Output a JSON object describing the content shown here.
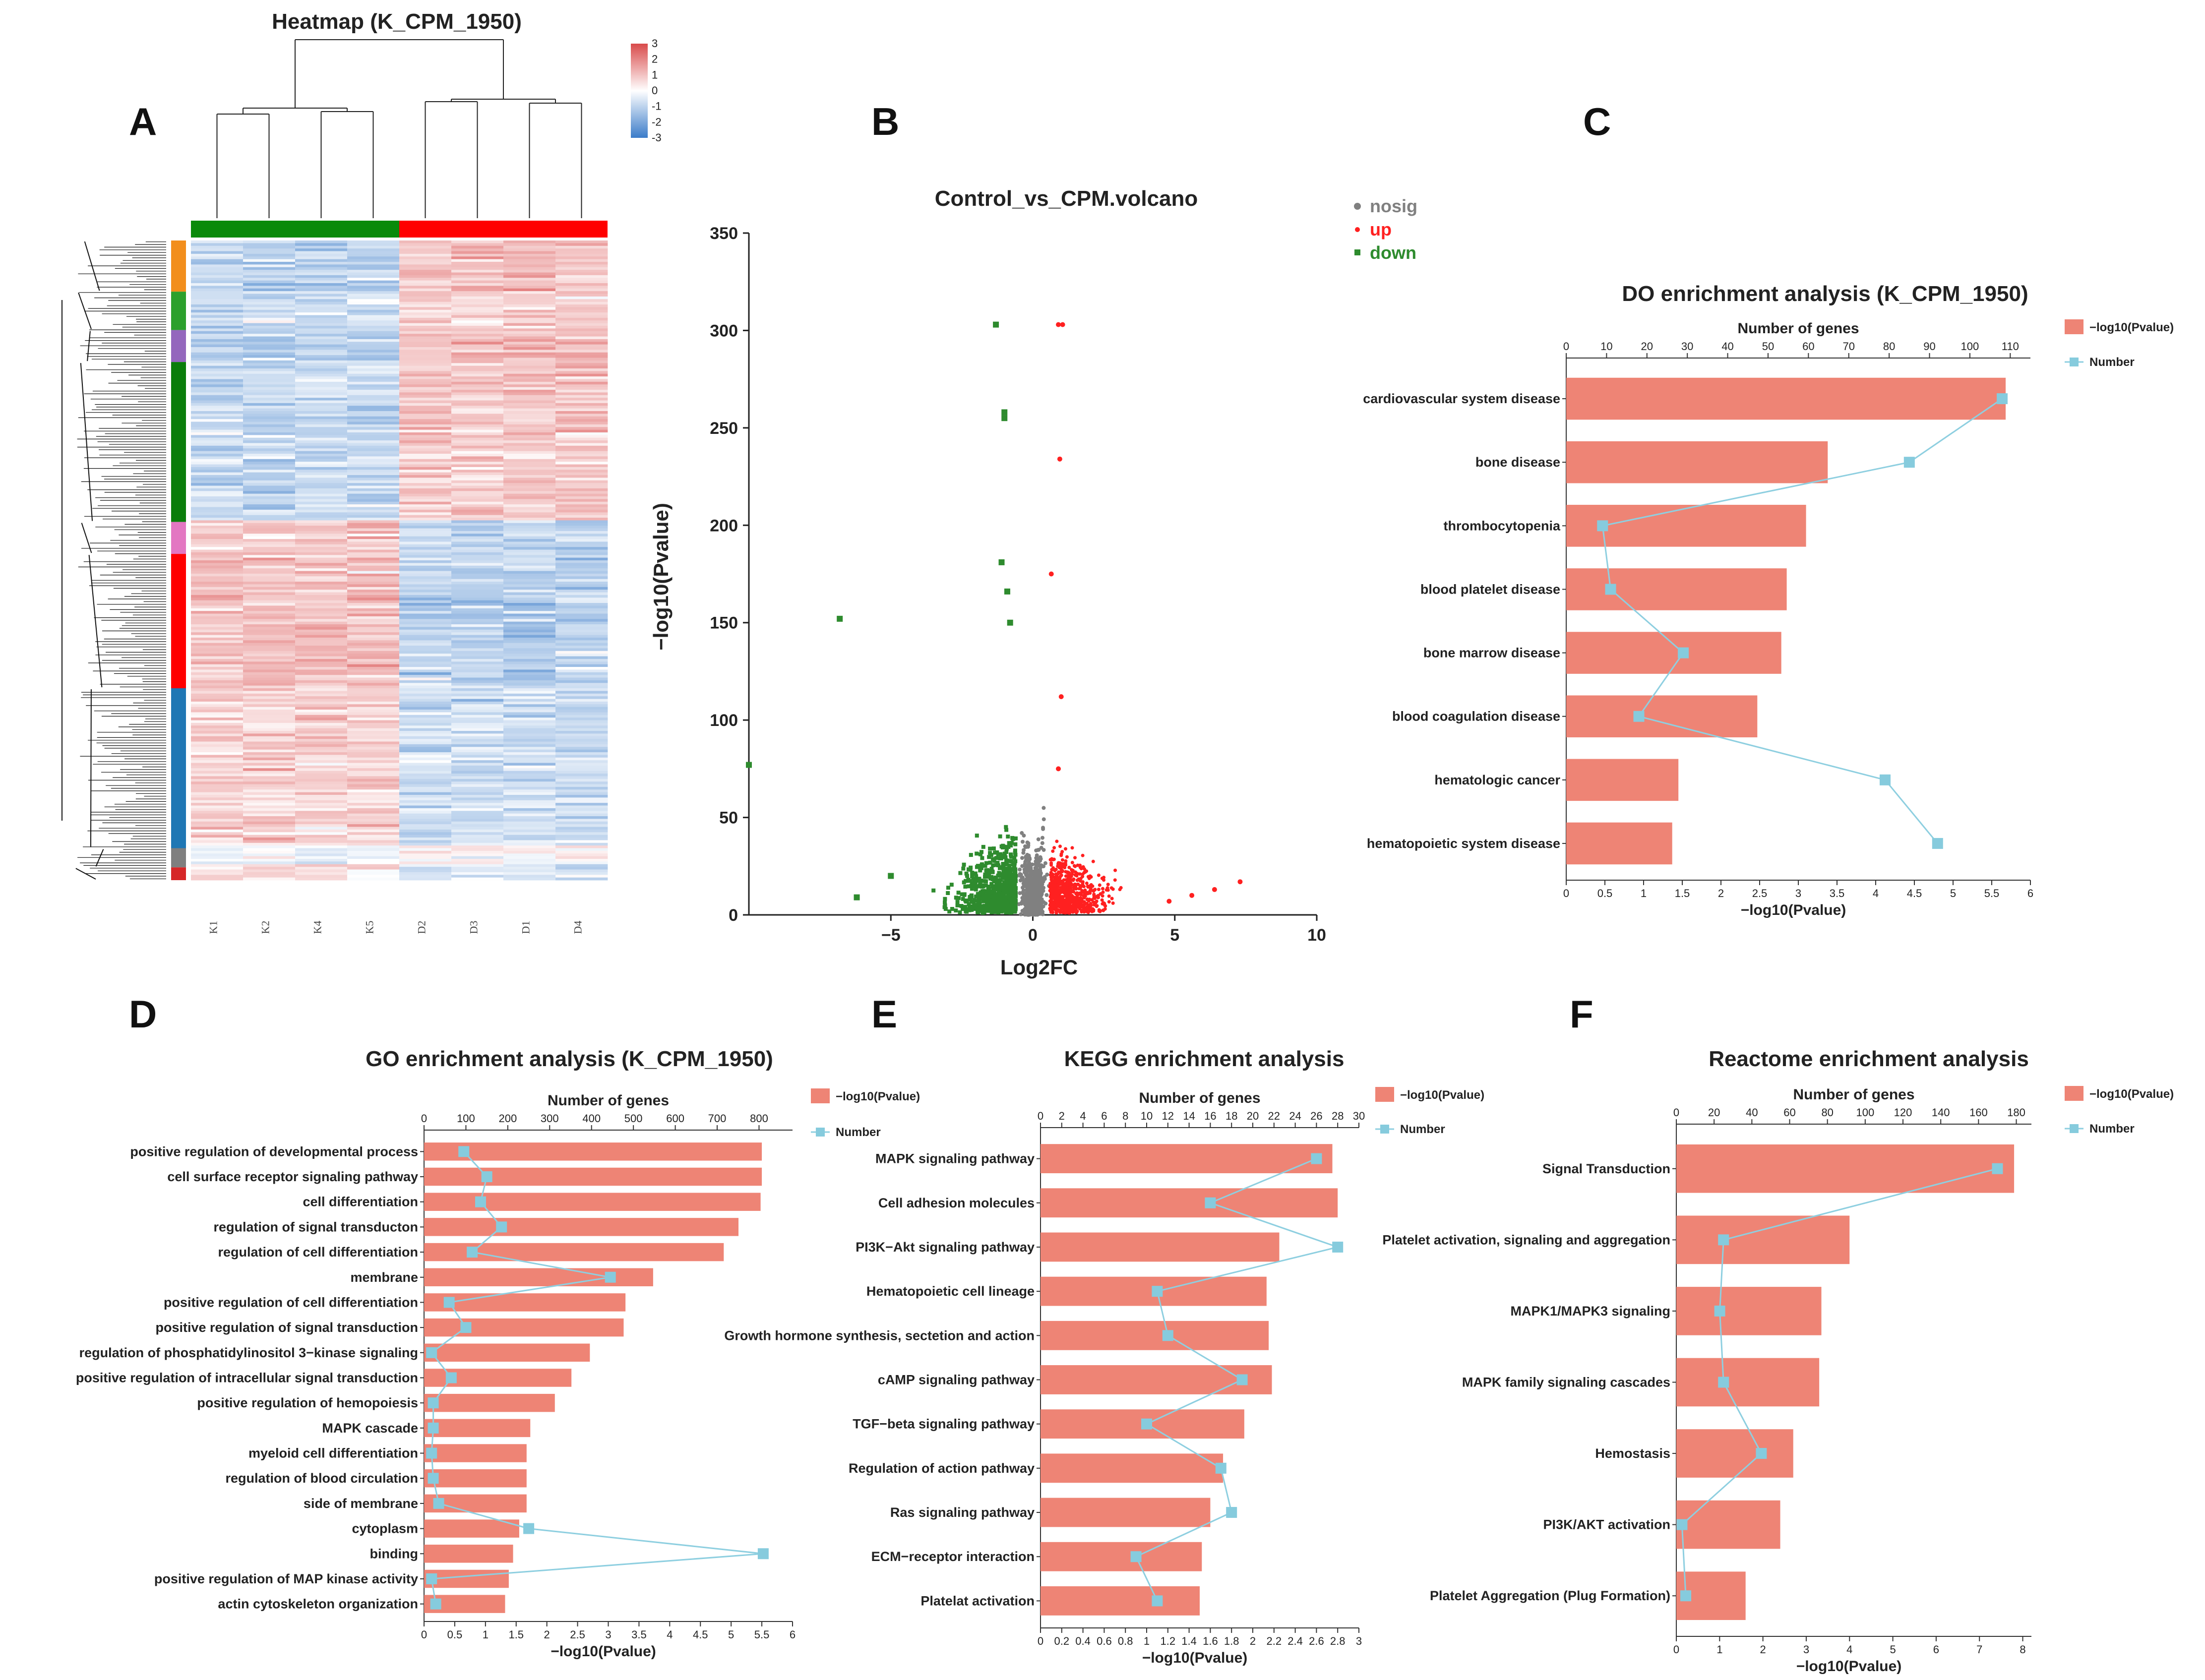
{
  "figure": {
    "panel_letters": [
      "A",
      "B",
      "C",
      "D",
      "E",
      "F"
    ],
    "colors": {
      "bar": "#ee8475",
      "line": "#8ecfe0",
      "marker": "#86cbdd",
      "nosig": "#808080",
      "up": "#ff2020",
      "down": "#2e8b2e",
      "heat_high": "#d94a4a",
      "heat_mid": "#ffffff",
      "heat_low": "#3b7cc9",
      "group_control": "#0a8a0a",
      "group_treat": "#ff0000"
    }
  },
  "chart_data": [
    {
      "id": "A",
      "type": "heatmap",
      "title": "Heatmap (K_CPM_1950)",
      "samples": [
        "K1",
        "K2",
        "K4",
        "K5",
        "D2",
        "D3",
        "D1",
        "D4"
      ],
      "colorbar_ticks": [
        "3",
        "2",
        "1",
        "0",
        "-1",
        "-2",
        "-3"
      ],
      "colorbar_range": [
        -3,
        3
      ],
      "row_cluster_colors": [
        "#f28e1c",
        "#2ca02c",
        "#9467bd",
        "#0a7d0a",
        "#e377c2",
        "#ff0000",
        "#1f77b4",
        "#7f7f7f",
        "#d62728"
      ],
      "row_cluster_fractions": [
        0.08,
        0.06,
        0.05,
        0.25,
        0.05,
        0.21,
        0.25,
        0.03,
        0.02
      ]
    },
    {
      "id": "B",
      "type": "scatter",
      "title": "Control_vs_CPM.volcano",
      "xlabel": "Log2FC",
      "ylabel": "−log10(Pvalue)",
      "xlim": [
        -10,
        10
      ],
      "ylim": [
        0,
        350
      ],
      "xticks": [
        -5,
        0,
        5,
        10
      ],
      "yticks": [
        0,
        50,
        100,
        150,
        200,
        250,
        300,
        350
      ],
      "legend": [
        "nosig",
        "up",
        "down"
      ],
      "highlighted_points": {
        "up": [
          [
            0.9,
            303
          ],
          [
            1.05,
            303
          ],
          [
            0.95,
            234
          ],
          [
            0.65,
            175
          ],
          [
            7.3,
            17
          ],
          [
            6.4,
            13
          ],
          [
            5.6,
            10
          ],
          [
            4.8,
            7
          ],
          [
            1.0,
            112
          ],
          [
            0.9,
            75
          ]
        ],
        "down": [
          [
            -1.3,
            303
          ],
          [
            -1.0,
            258
          ],
          [
            -1.0,
            255
          ],
          [
            -6.8,
            152
          ],
          [
            -10,
            77
          ],
          [
            -1.1,
            181
          ],
          [
            -0.9,
            166
          ],
          [
            -0.8,
            150
          ],
          [
            -5.0,
            20
          ],
          [
            -6.2,
            9
          ]
        ]
      }
    },
    {
      "id": "C",
      "type": "bar",
      "title": "DO enrichment analysis (K_CPM_1950)",
      "xlabel": "−log10(Pvalue)",
      "x2label": "Number of genes",
      "legend": [
        "−log10(Pvalue)",
        "Number"
      ],
      "categories": [
        "cardiovascular system disease",
        "bone disease",
        "thrombocytopenia",
        "blood platelet disease",
        "bone marrow disease",
        "blood coagulation disease",
        "hematologic cancer",
        "hematopoietic system disease"
      ],
      "values": [
        5.68,
        3.38,
        3.1,
        2.85,
        2.78,
        2.47,
        1.45,
        1.37
      ],
      "numbers": [
        108,
        85,
        9,
        11,
        29,
        18,
        79,
        92
      ],
      "xlim": [
        0,
        6
      ],
      "xticks": [
        "0",
        "0.5",
        "1",
        "1.5",
        "2",
        "2.5",
        "3",
        "3.5",
        "4",
        "4.5",
        "5",
        "5.5",
        "6"
      ],
      "x2lim": [
        0,
        115
      ],
      "x2ticks": [
        "0",
        "10",
        "20",
        "30",
        "40",
        "50",
        "60",
        "70",
        "80",
        "90",
        "100",
        "110"
      ]
    },
    {
      "id": "D",
      "type": "bar",
      "title": "GO enrichment analysis (K_CPM_1950)",
      "xlabel": "−log10(Pvalue)",
      "x2label": "Number of genes",
      "legend": [
        "−log10(Pvalue)",
        "Number"
      ],
      "categories": [
        "positive regulation of developmental process",
        "cell surface receptor signaling pathway",
        "cell differentiation",
        "regulation of signal transducton",
        "regulation of cell differentiation",
        "membrane",
        "positive regulation of cell differentiation",
        "positive regulation of signal transduction",
        "regulation of phosphatidylinositol 3−kinase signaling",
        "positive regulation of intracellular signal transduction",
        "positive regulation of hemopoiesis",
        "MAPK cascade",
        "myeloid cell differentiation",
        "regulation of blood circulation",
        "side of membrane",
        "cytoplasm",
        "binding",
        "positive regulation of MAP kinase activity",
        "actin cytoskeleton organization"
      ],
      "values": [
        5.5,
        5.5,
        5.48,
        5.12,
        4.88,
        3.73,
        3.28,
        3.25,
        2.7,
        2.4,
        2.13,
        1.73,
        1.67,
        1.67,
        1.67,
        1.55,
        1.45,
        1.38,
        1.32
      ],
      "numbers": [
        95,
        150,
        135,
        185,
        115,
        445,
        60,
        100,
        18,
        65,
        22,
        22,
        18,
        22,
        35,
        250,
        810,
        18,
        28
      ],
      "xlim": [
        0,
        6
      ],
      "xticks": [
        "0",
        "0.5",
        "1",
        "1.5",
        "2",
        "2.5",
        "3",
        "3.5",
        "4",
        "4.5",
        "5",
        "5.5",
        "6"
      ],
      "x2lim": [
        0,
        880
      ],
      "x2ticks": [
        "0",
        "100",
        "200",
        "300",
        "400",
        "500",
        "600",
        "700",
        "800"
      ]
    },
    {
      "id": "E",
      "type": "bar",
      "title": "KEGG enrichment analysis",
      "xlabel": "−log10(Pvalue)",
      "x2label": "Number of genes",
      "legend": [
        "−log10(Pvalue)",
        "Number"
      ],
      "categories": [
        "MAPK signaling pathway",
        "Cell adhesion molecules",
        "PI3K−Akt signaling pathway",
        "Hematopoietic cell lineage",
        "Growth hormone synthesis, sectetion and action",
        "cAMP signaling pathway",
        "TGF−beta signaling pathway",
        "Regulation of action pathway",
        "Ras signaling pathway",
        "ECM−receptor interaction",
        "Platelat activation"
      ],
      "values": [
        2.75,
        2.8,
        2.25,
        2.13,
        2.15,
        2.18,
        1.92,
        1.72,
        1.6,
        1.52,
        1.5
      ],
      "numbers": [
        26,
        16,
        28,
        11,
        12,
        19,
        10,
        17,
        18,
        9,
        11
      ],
      "xlim": [
        0,
        3
      ],
      "xticks": [
        "0",
        "0.2",
        "0.4",
        "0.6",
        "0.8",
        "1",
        "1.2",
        "1.4",
        "1.6",
        "1.8",
        "2",
        "2.2",
        "2.4",
        "2.6",
        "2.8",
        "3"
      ],
      "x2lim": [
        0,
        30
      ],
      "x2ticks": [
        "0",
        "2",
        "4",
        "6",
        "8",
        "10",
        "12",
        "14",
        "16",
        "18",
        "20",
        "22",
        "24",
        "26",
        "28",
        "30"
      ]
    },
    {
      "id": "F",
      "type": "bar",
      "title": "Reactome enrichment analysis",
      "xlabel": "−log10(Pvalue)",
      "x2label": "Number of genes",
      "legend": [
        "−log10(Pvalue)",
        "Number"
      ],
      "categories": [
        "Signal Transduction",
        "Platelet activation, signaling and aggregation",
        "MAPK1/MAPK3 signaling",
        "MAPK family signaling cascades",
        "Hemostasis",
        "PI3K/AKT activation",
        "Platelet Aggregation (Plug Formation)"
      ],
      "values": [
        7.8,
        4.0,
        3.35,
        3.3,
        2.7,
        2.4,
        1.6
      ],
      "numbers": [
        170,
        25,
        23,
        25,
        45,
        3,
        5
      ],
      "xlim": [
        0,
        8.2
      ],
      "xticks": [
        "0",
        "1",
        "2",
        "3",
        "4",
        "5",
        "6",
        "7",
        "8"
      ],
      "x2lim": [
        0,
        188
      ],
      "x2ticks": [
        "0",
        "20",
        "40",
        "60",
        "80",
        "100",
        "120",
        "140",
        "160",
        "180"
      ]
    }
  ]
}
